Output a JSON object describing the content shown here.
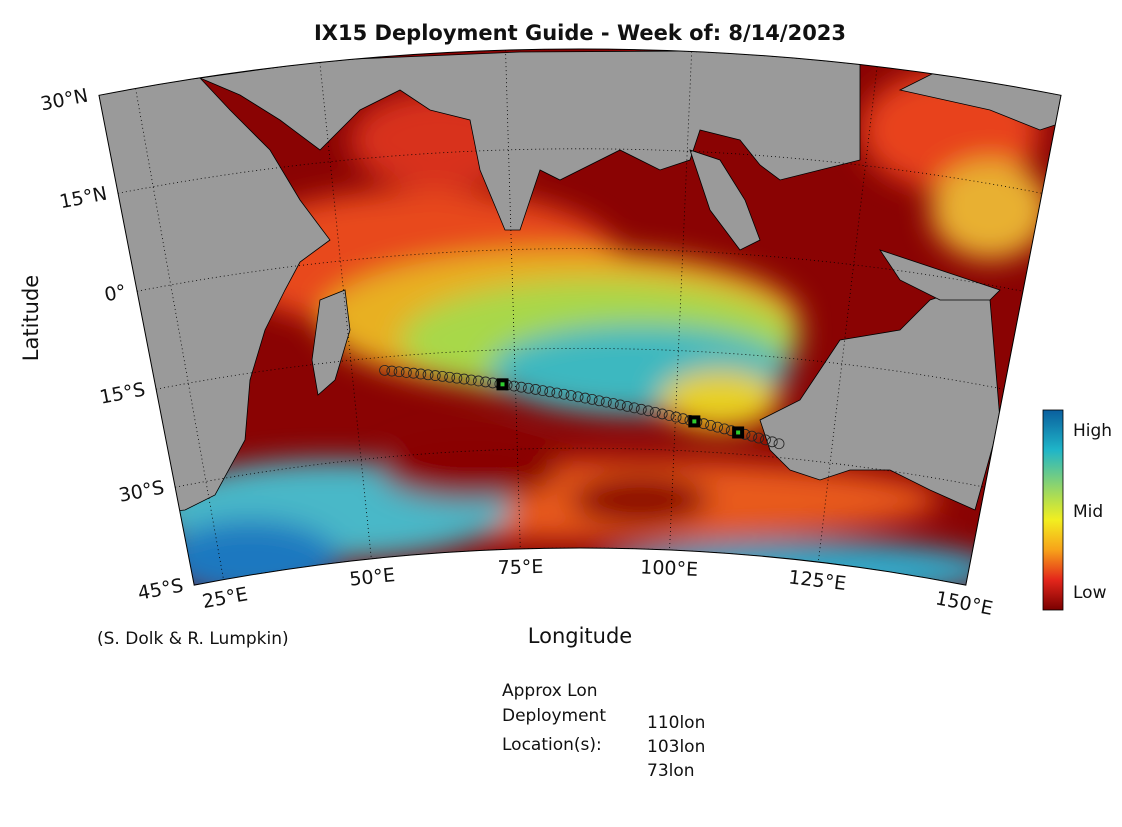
{
  "title": "IX15 Deployment Guide - Week of: 8/14/2023",
  "x_label": "Longitude",
  "y_label": "Latitude",
  "lat_ticks": [
    {
      "value": 30,
      "label": "30°N"
    },
    {
      "value": 15,
      "label": "15°N"
    },
    {
      "value": 0,
      "label": "0°"
    },
    {
      "value": -15,
      "label": "15°S"
    },
    {
      "value": -30,
      "label": "30°S"
    },
    {
      "value": -45,
      "label": "45°S"
    }
  ],
  "lon_ticks": [
    {
      "value": 25,
      "label": "25°E"
    },
    {
      "value": 50,
      "label": "50°E"
    },
    {
      "value": 75,
      "label": "75°E"
    },
    {
      "value": 100,
      "label": "100°E"
    },
    {
      "value": 125,
      "label": "125°E"
    },
    {
      "value": 150,
      "label": "150°E"
    }
  ],
  "colorbar": {
    "labels": [
      "High",
      "Mid",
      "Low"
    ]
  },
  "credit": "(S. Dolk & R. Lumpkin)",
  "deployment": {
    "heading": [
      "Approx Lon",
      "Deployment",
      "Location(s):"
    ],
    "locations": [
      {
        "value": 110,
        "label": "110lon"
      },
      {
        "value": 103,
        "label": "103lon"
      },
      {
        "value": 73,
        "label": "73lon"
      }
    ]
  }
}
